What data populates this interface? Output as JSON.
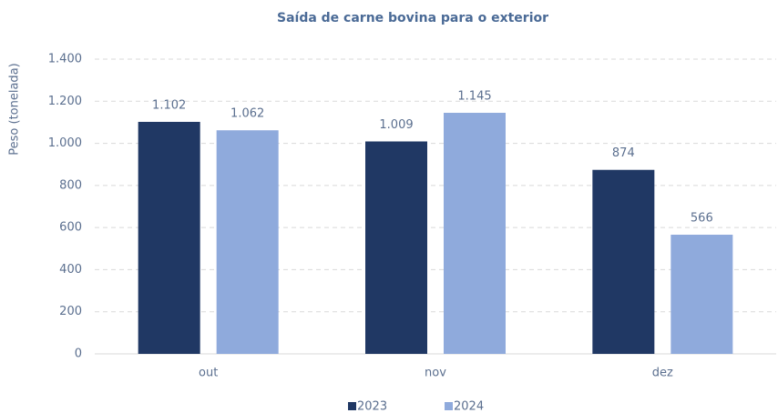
{
  "chart_data": {
    "type": "bar",
    "title": "Saída de carne bovina para o exterior",
    "y_label": "Peso (tonelada)",
    "categories": [
      "out",
      "nov",
      "dez"
    ],
    "series": [
      {
        "name": "2023",
        "color": "#203864",
        "values": [
          1102,
          1009,
          874
        ],
        "value_labels": [
          "1.102",
          "1.009",
          "874"
        ]
      },
      {
        "name": "2024",
        "color": "#8faadc",
        "values": [
          1062,
          1145,
          566
        ],
        "value_labels": [
          "1.062",
          "1.145",
          "566"
        ]
      }
    ],
    "ylim": [
      0,
      1400
    ],
    "yticks": [
      0,
      200,
      400,
      600,
      800,
      {
        "value": 1000,
        "label": "1.000"
      },
      {
        "value": 1200,
        "label": "1.200"
      },
      {
        "value": 1400,
        "label": "1.400"
      }
    ],
    "grid": true,
    "legend": "bottom"
  }
}
